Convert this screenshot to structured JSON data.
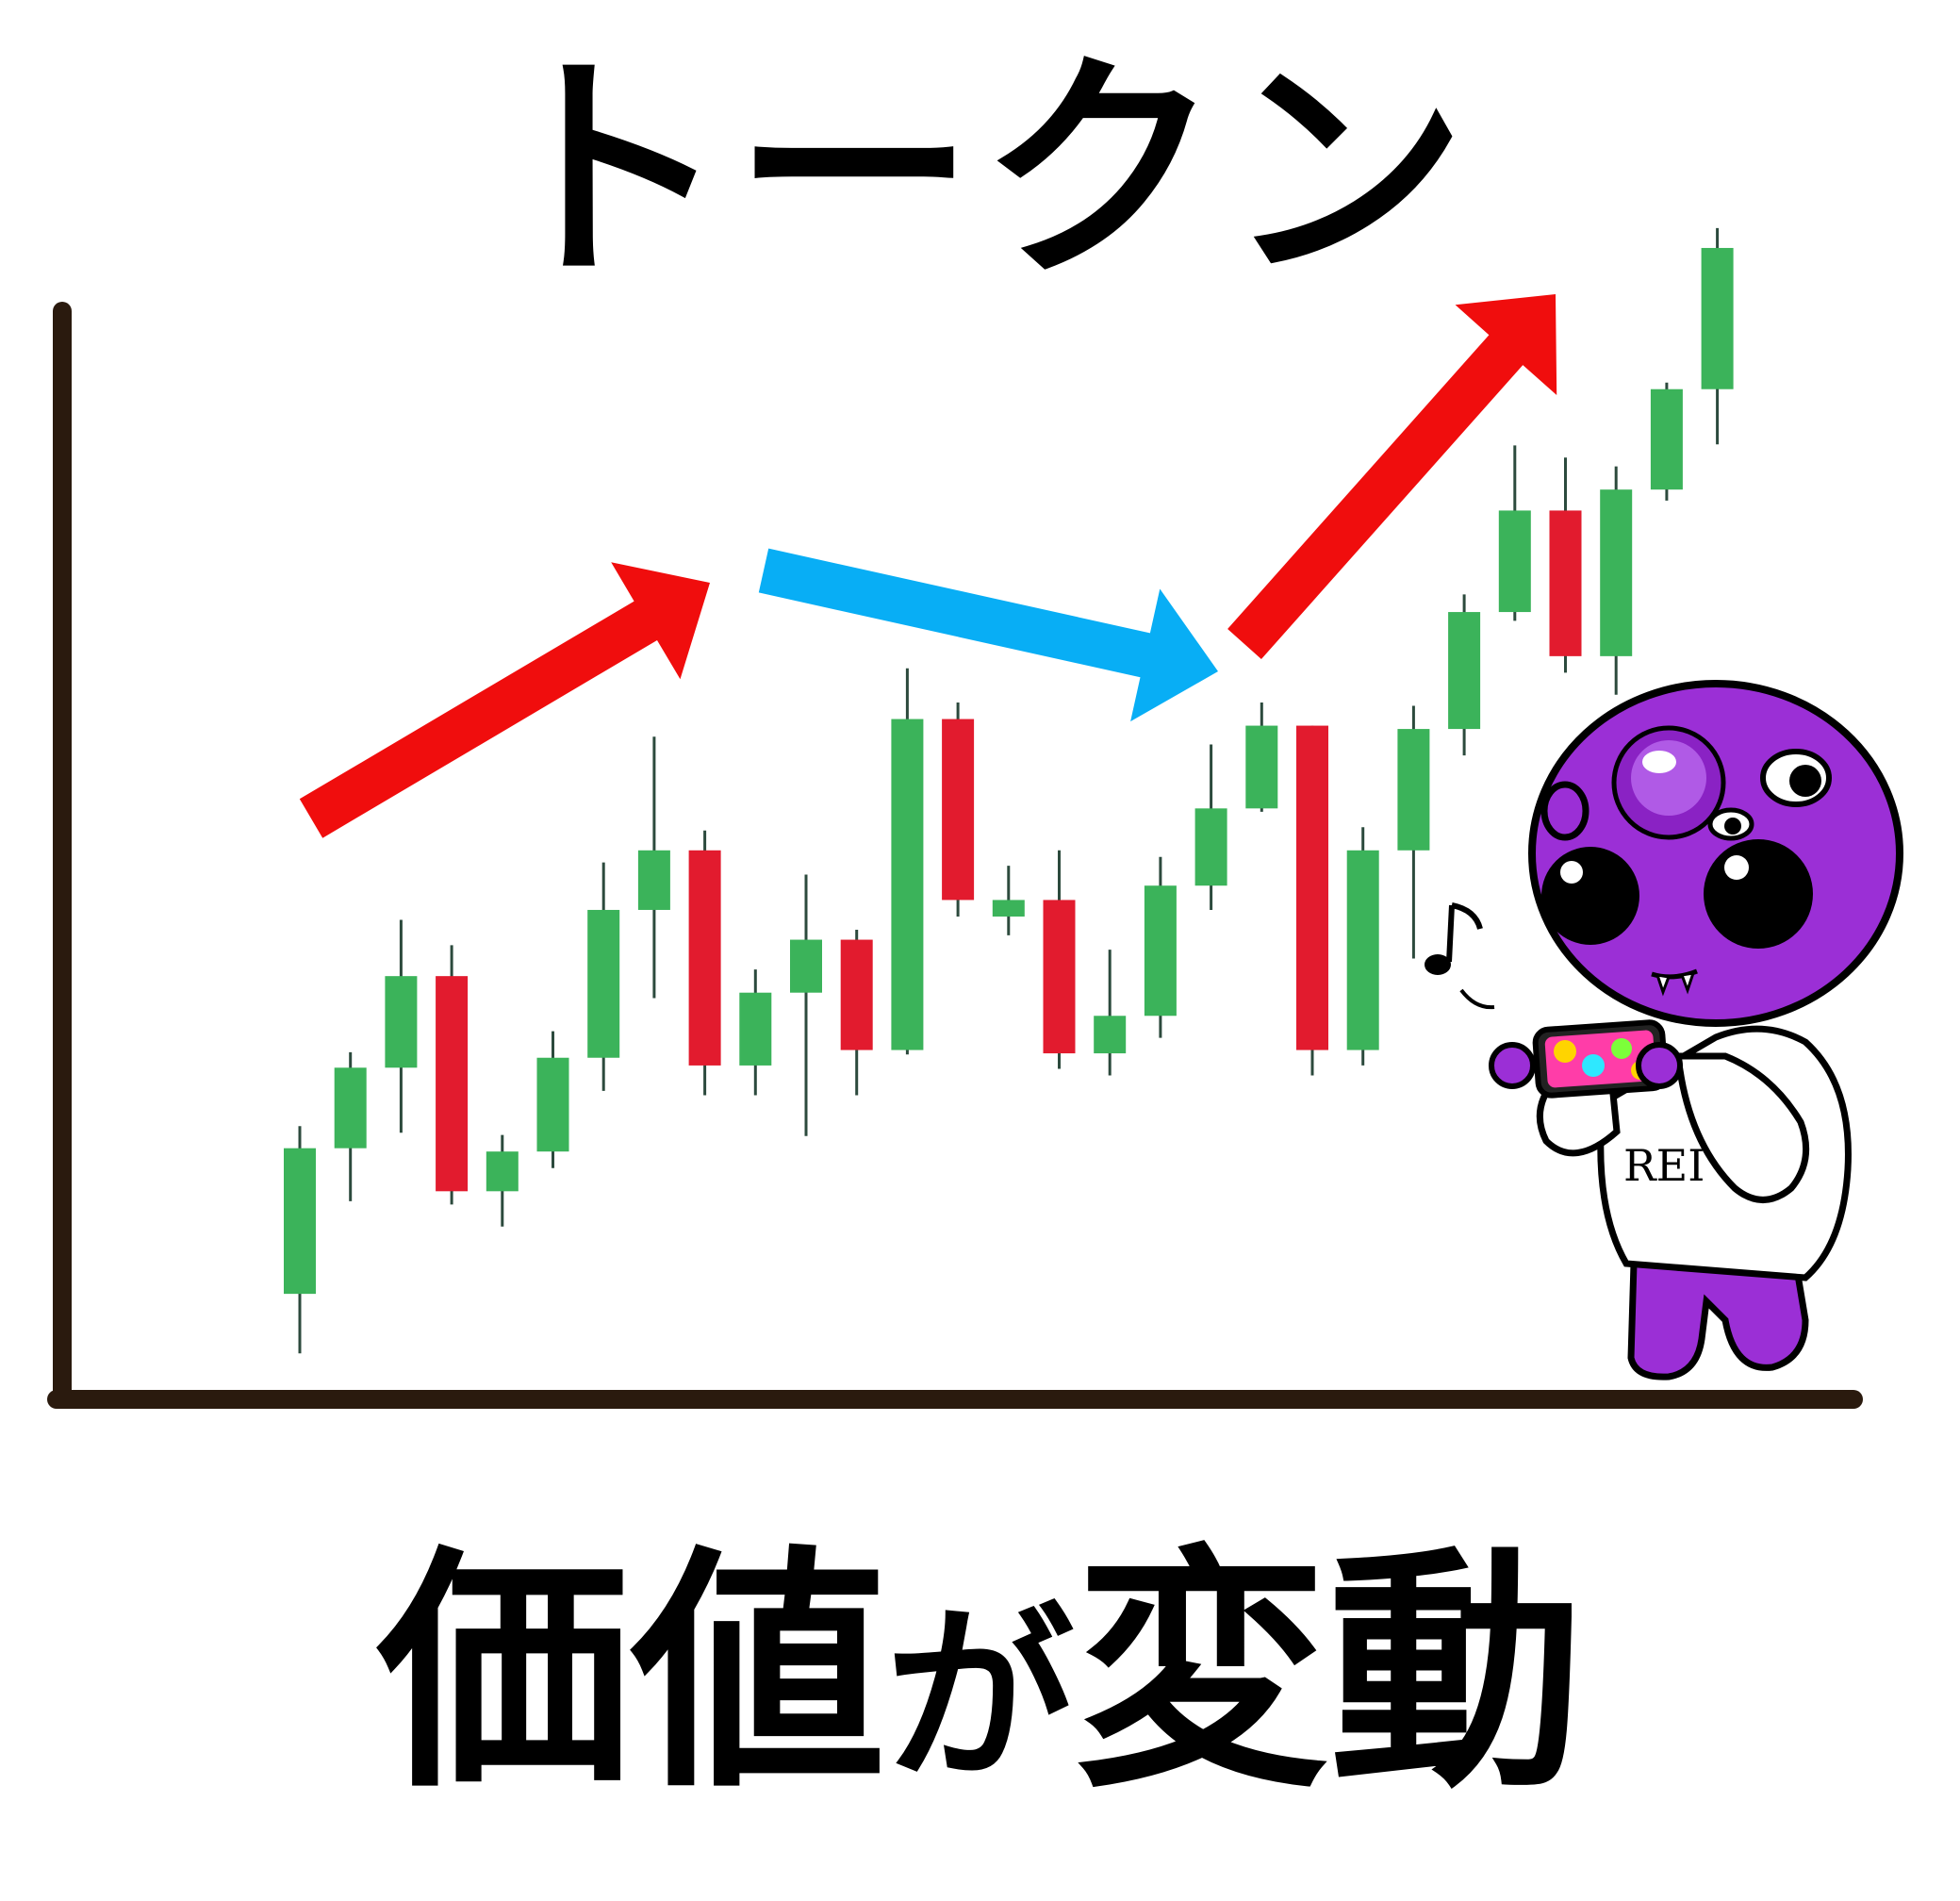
{
  "title": "トークン",
  "subtitle": {
    "part1": "価値",
    "part2": "が",
    "part3": "変動"
  },
  "colors": {
    "up": "#3bb35a",
    "down": "#e21b2e",
    "wick": "#2c4a3d",
    "axis": "#2a1a0e",
    "arrow_up": "#f00d0d",
    "arrow_down": "#08aef5",
    "mascot_body": "#9b2fd6",
    "hoodie": "#ffffff"
  },
  "mascot": {
    "hoodie_text": "REI",
    "icon": "purple-alien-mascot-icon"
  },
  "chart_data": {
    "type": "candlestick",
    "title": "",
    "xlabel": "",
    "ylabel": "",
    "ylim": [
      0,
      100
    ],
    "candles": [
      {
        "open": 6.4,
        "close": 19.6,
        "high": 21.6,
        "low": 1.0
      },
      {
        "open": 19.6,
        "close": 26.9,
        "high": 28.3,
        "low": 14.8
      },
      {
        "open": 26.9,
        "close": 35.2,
        "high": 40.3,
        "low": 21.0
      },
      {
        "open": 35.2,
        "close": 15.7,
        "high": 38.0,
        "low": 14.5
      },
      {
        "open": 15.7,
        "close": 19.3,
        "high": 20.8,
        "low": 12.5
      },
      {
        "open": 19.3,
        "close": 27.8,
        "high": 30.2,
        "low": 17.8
      },
      {
        "open": 27.8,
        "close": 41.2,
        "high": 45.5,
        "low": 24.8
      },
      {
        "open": 41.2,
        "close": 46.6,
        "high": 56.9,
        "low": 33.2
      },
      {
        "open": 46.6,
        "close": 27.1,
        "high": 48.4,
        "low": 24.4
      },
      {
        "open": 27.1,
        "close": 33.7,
        "high": 35.8,
        "low": 24.4
      },
      {
        "open": 33.7,
        "close": 38.5,
        "high": 44.4,
        "low": 20.7
      },
      {
        "open": 38.5,
        "close": 28.5,
        "high": 39.4,
        "low": 24.4
      },
      {
        "open": 28.5,
        "close": 58.5,
        "high": 63.1,
        "low": 28.1
      },
      {
        "open": 58.5,
        "close": 42.1,
        "high": 60.0,
        "low": 40.6
      },
      {
        "open": 40.6,
        "close": 42.1,
        "high": 45.2,
        "low": 38.9
      },
      {
        "open": 42.1,
        "close": 28.2,
        "high": 46.6,
        "low": 26.8
      },
      {
        "open": 28.2,
        "close": 31.6,
        "high": 37.6,
        "low": 26.2
      },
      {
        "open": 31.6,
        "close": 43.4,
        "high": 46.0,
        "low": 29.6
      },
      {
        "open": 43.4,
        "close": 50.4,
        "high": 56.2,
        "low": 41.2
      },
      {
        "open": 50.4,
        "close": 57.9,
        "high": 60.0,
        "low": 50.1
      },
      {
        "open": 57.9,
        "close": 28.5,
        "high": 57.9,
        "low": 26.2
      },
      {
        "open": 28.5,
        "close": 46.6,
        "high": 48.7,
        "low": 27.1
      },
      {
        "open": 46.6,
        "close": 57.6,
        "high": 59.7,
        "low": 36.8
      },
      {
        "open": 57.6,
        "close": 68.2,
        "high": 69.8,
        "low": 55.2
      },
      {
        "open": 68.2,
        "close": 77.4,
        "high": 83.3,
        "low": 67.4
      },
      {
        "open": 77.4,
        "close": 64.2,
        "high": 82.2,
        "low": 62.7
      },
      {
        "open": 64.2,
        "close": 79.3,
        "high": 81.4,
        "low": 60.7
      },
      {
        "open": 79.3,
        "close": 88.4,
        "high": 89.0,
        "low": 78.3
      },
      {
        "open": 88.4,
        "close": 101.2,
        "high": 103.0,
        "low": 83.4
      }
    ],
    "trend_arrows": [
      {
        "direction": "up",
        "color": "red"
      },
      {
        "direction": "down",
        "color": "blue"
      },
      {
        "direction": "up",
        "color": "red"
      }
    ]
  }
}
